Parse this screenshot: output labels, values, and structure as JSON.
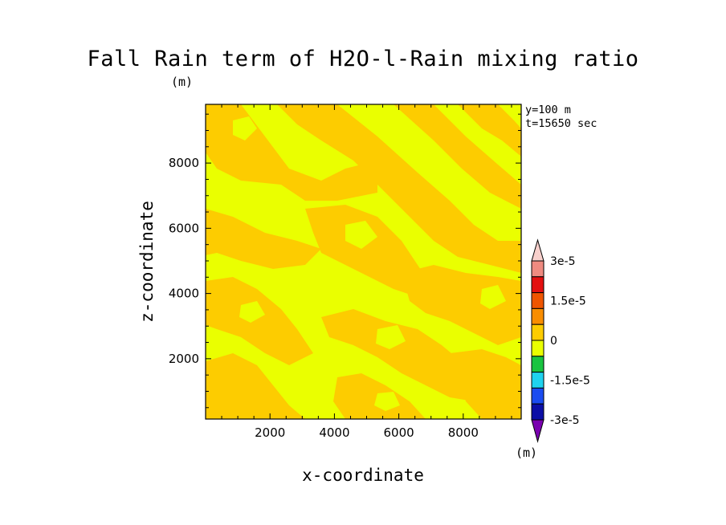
{
  "title": "Fall Rain term of H2O-l-Rain mixing ratio",
  "unit_top": "(m)",
  "info_lines": [
    "y=100 m",
    "t=15650 sec"
  ],
  "colorbar_unit": "(m)",
  "colors": {
    "positive_band": "#fdcc00",
    "neutral_band": "#eaff00"
  },
  "chart_data": {
    "type": "heatmap",
    "title": "Fall Rain term of H2O-l-Rain mixing ratio",
    "xlabel": "x-coordinate",
    "ylabel": "z-coordinate",
    "xlim": [
      0,
      9800
    ],
    "ylim": [
      150,
      9800
    ],
    "x_ticks": [
      2000,
      4000,
      6000,
      8000
    ],
    "y_ticks": [
      2000,
      4000,
      6000,
      8000
    ],
    "x_tick_labels": [
      "2000",
      "4000",
      "6000",
      "8000"
    ],
    "y_tick_labels": [
      "2000",
      "4000",
      "6000",
      "8000"
    ],
    "colorbar": {
      "levels": [
        -3e-05,
        -2.25e-05,
        -1.5e-05,
        -7.5e-06,
        0,
        7.5e-06,
        1.5e-05,
        2.25e-05,
        3e-05
      ],
      "colors": [
        "#7a00b0",
        "#0c0fa6",
        "#1b4cf0",
        "#1fd2ee",
        "#19c440",
        "#eaff00",
        "#fdcc00",
        "#f98d00",
        "#ef5500",
        "#e31010",
        "#ee8a80",
        "#f8d0cc"
      ],
      "tick_values": [
        3e-05,
        1.5e-05,
        0,
        -1.5e-05,
        -3e-05
      ],
      "tick_labels": [
        "3e-5",
        "1.5e-5",
        "0",
        "-1.5e-5",
        "-3e-5"
      ],
      "extend": "both"
    },
    "value_range_shown": [
      0,
      7.5e-06
    ],
    "dominant_classes": [
      "0 to 7.5e-6 (orange)",
      "-7.5e-6 to 0 (yellow)"
    ],
    "grid": false
  },
  "axis_labels": {
    "x": "x-coordinate",
    "y": "z-coordinate"
  }
}
